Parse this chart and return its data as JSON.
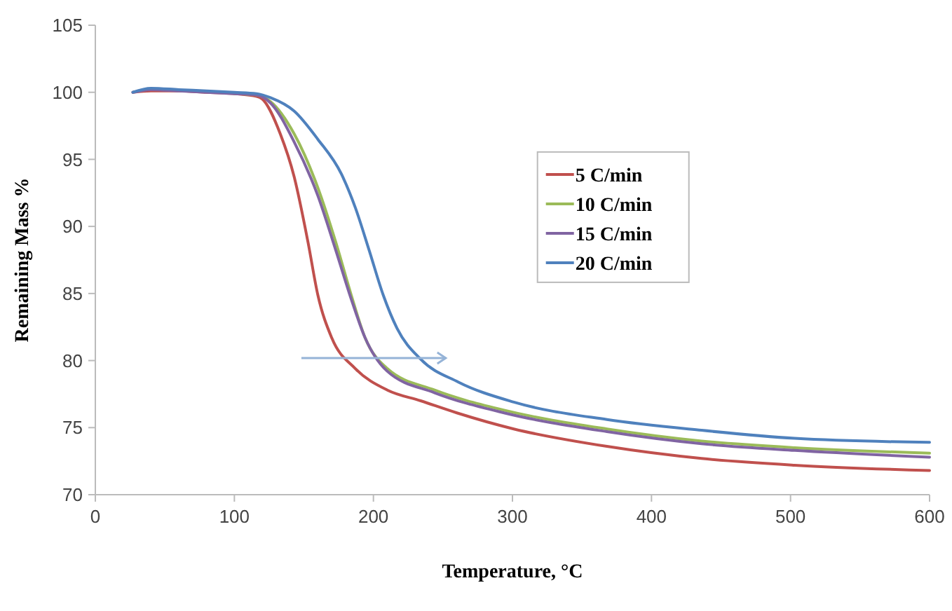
{
  "chart_data": {
    "type": "line",
    "xlabel": "Temperature, °C",
    "ylabel": "Remaining Mass %",
    "xlim": [
      0,
      600
    ],
    "xticks": [
      0,
      100,
      200,
      300,
      400,
      500,
      600
    ],
    "ylim": [
      70,
      105
    ],
    "yticks": [
      70,
      75,
      80,
      85,
      90,
      95,
      100,
      105
    ],
    "grid": false,
    "legend": "top right",
    "marker": "none",
    "line_style": "solid",
    "series": [
      {
        "name": "5 C/min",
        "color": "#c0504d",
        "x": [
          27,
          40,
          60,
          80,
          100,
          116,
          120,
          133,
          143,
          153,
          160,
          170,
          187,
          210,
          234,
          260,
          301,
          368,
          436,
          503,
          600
        ],
        "values": [
          100,
          100.1,
          100.1,
          100,
          99.9,
          99.7,
          99.5,
          96.9,
          93.7,
          88.8,
          84.9,
          81.7,
          79.4,
          77.8,
          77.0,
          76.1,
          74.9,
          73.6,
          72.7,
          72.2,
          71.8
        ]
      },
      {
        "name": "10 C/min",
        "color": "#9bbb59",
        "x": [
          100,
          116,
          126,
          143,
          160,
          173,
          184,
          194,
          210,
          244,
          294,
          368,
          436,
          503,
          600
        ],
        "values": [
          99.9,
          99.8,
          99.3,
          96.9,
          92.9,
          88.8,
          84.9,
          81.7,
          79.4,
          77.8,
          76.3,
          74.9,
          74.0,
          73.5,
          73.1
        ]
      },
      {
        "name": "15 C/min",
        "color": "#8064a2",
        "x": [
          27,
          40,
          60,
          80,
          100,
          116,
          126,
          143,
          160,
          173,
          184,
          194,
          210,
          244,
          294,
          368,
          436,
          503,
          600
        ],
        "values": [
          100,
          100.2,
          100.1,
          100,
          99.9,
          99.8,
          99.2,
          96.3,
          92.3,
          88.2,
          84.6,
          81.7,
          79.2,
          77.6,
          76.1,
          74.7,
          73.8,
          73.3,
          72.8
        ]
      },
      {
        "name": "20 C/min",
        "color": "#4f81bd",
        "x": [
          27,
          40,
          60,
          80,
          100,
          116,
          126,
          143,
          160,
          177,
          187,
          197,
          207,
          217,
          234,
          261,
          301,
          368,
          436,
          503,
          600
        ],
        "values": [
          100,
          100.3,
          100.2,
          100.1,
          100,
          99.9,
          99.6,
          98.6,
          96.5,
          93.9,
          91.4,
          88.2,
          84.9,
          82.4,
          80.1,
          78.4,
          76.9,
          75.6,
          74.8,
          74.2,
          73.9
        ]
      }
    ]
  }
}
